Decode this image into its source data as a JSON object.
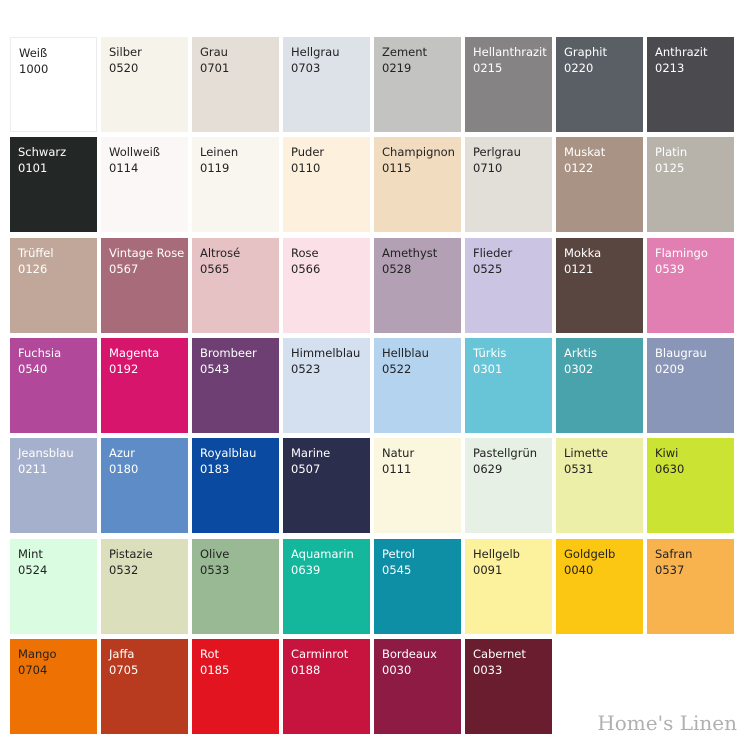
{
  "watermark": "Home's Linen",
  "swatches": [
    {
      "name": "Weiß",
      "code": "1000",
      "color": "#ffffff",
      "text_color": "#222222"
    },
    {
      "name": "Silber",
      "code": "0520",
      "color": "#f6f3ea",
      "text_color": "#222222"
    },
    {
      "name": "Grau",
      "code": "0701",
      "color": "#e5ded6",
      "text_color": "#222222"
    },
    {
      "name": "Hellgrau",
      "code": "0703",
      "color": "#dde2e8",
      "text_color": "#222222"
    },
    {
      "name": "Zement",
      "code": "0219",
      "color": "#c3c3c1",
      "text_color": "#222222"
    },
    {
      "name": "Hellanthrazit",
      "code": "0215",
      "color": "#858383",
      "text_color": "#ffffff"
    },
    {
      "name": "Graphit",
      "code": "0220",
      "color": "#5a5f66",
      "text_color": "#ffffff"
    },
    {
      "name": "Anthrazit",
      "code": "0213",
      "color": "#4a4a4f",
      "text_color": "#ffffff"
    },
    {
      "name": "Schwarz",
      "code": "0101",
      "color": "#232826",
      "text_color": "#ffffff"
    },
    {
      "name": "Wollweiß",
      "code": "0114",
      "color": "#faf7f6",
      "text_color": "#222222"
    },
    {
      "name": "Leinen",
      "code": "0119",
      "color": "#f8f6ee",
      "text_color": "#222222"
    },
    {
      "name": "Puder",
      "code": "0110",
      "color": "#fdf0dc",
      "text_color": "#222222"
    },
    {
      "name": "Champignon",
      "code": "0115",
      "color": "#f2dcc0",
      "text_color": "#222222"
    },
    {
      "name": "Perlgrau",
      "code": "0710",
      "color": "#e2dfd8",
      "text_color": "#222222"
    },
    {
      "name": "Muskat",
      "code": "0122",
      "color": "#a99384",
      "text_color": "#ffffff"
    },
    {
      "name": "Platin",
      "code": "0125",
      "color": "#b7b3ab",
      "text_color": "#ffffff"
    },
    {
      "name": "Trüffel",
      "code": "0126",
      "color": "#c1a79a",
      "text_color": "#ffffff"
    },
    {
      "name": "Vintage Rose",
      "code": "0567",
      "color": "#a86b79",
      "text_color": "#ffffff"
    },
    {
      "name": "Altrosé",
      "code": "0565",
      "color": "#e6c2c5",
      "text_color": "#222222"
    },
    {
      "name": "Rose",
      "code": "0566",
      "color": "#fbe0e8",
      "text_color": "#222222"
    },
    {
      "name": "Amethyst",
      "code": "0528",
      "color": "#b3a0b4",
      "text_color": "#222222"
    },
    {
      "name": "Flieder",
      "code": "0525",
      "color": "#cbc4e2",
      "text_color": "#222222"
    },
    {
      "name": "Mokka",
      "code": "0121",
      "color": "#5a4640",
      "text_color": "#ffffff"
    },
    {
      "name": "Flamingo",
      "code": "0539",
      "color": "#e27fb2",
      "text_color": "#ffffff"
    },
    {
      "name": "Fuchsia",
      "code": "0540",
      "color": "#b1489a",
      "text_color": "#ffffff"
    },
    {
      "name": "Magenta",
      "code": "0192",
      "color": "#d7156c",
      "text_color": "#ffffff"
    },
    {
      "name": "Brombeer",
      "code": "0543",
      "color": "#6d3f72",
      "text_color": "#ffffff"
    },
    {
      "name": "Himmelblau",
      "code": "0523",
      "color": "#d4dfef",
      "text_color": "#222222"
    },
    {
      "name": "Hellblau",
      "code": "0522",
      "color": "#b4d3ef",
      "text_color": "#222222"
    },
    {
      "name": "Türkis",
      "code": "0301",
      "color": "#68c5d8",
      "text_color": "#ffffff"
    },
    {
      "name": "Arktis",
      "code": "0302",
      "color": "#48a3ac",
      "text_color": "#ffffff"
    },
    {
      "name": "Blaugrau",
      "code": "0209",
      "color": "#8a96b7",
      "text_color": "#ffffff"
    },
    {
      "name": "Jeansblau",
      "code": "0211",
      "color": "#a5b0cd",
      "text_color": "#ffffff"
    },
    {
      "name": "Azur",
      "code": "0180",
      "color": "#5d8cc7",
      "text_color": "#ffffff"
    },
    {
      "name": "Royalblau",
      "code": "0183",
      "color": "#0a4aa0",
      "text_color": "#ffffff"
    },
    {
      "name": "Marine",
      "code": "0507",
      "color": "#2c2e4e",
      "text_color": "#ffffff"
    },
    {
      "name": "Natur",
      "code": "0111",
      "color": "#fbf7df",
      "text_color": "#222222"
    },
    {
      "name": "Pastellgrün",
      "code": "0629",
      "color": "#e6f0e4",
      "text_color": "#222222"
    },
    {
      "name": "Limette",
      "code": "0531",
      "color": "#ecefa8",
      "text_color": "#222222"
    },
    {
      "name": "Kiwi",
      "code": "0630",
      "color": "#cbe333",
      "text_color": "#222222"
    },
    {
      "name": "Mint",
      "code": "0524",
      "color": "#dafce0",
      "text_color": "#222222"
    },
    {
      "name": "Pistazie",
      "code": "0532",
      "color": "#dbdfbc",
      "text_color": "#222222"
    },
    {
      "name": "Olive",
      "code": "0533",
      "color": "#99b894",
      "text_color": "#222222"
    },
    {
      "name": "Aquamarin",
      "code": "0639",
      "color": "#14b79c",
      "text_color": "#ffffff"
    },
    {
      "name": "Petrol",
      "code": "0545",
      "color": "#0e8fa5",
      "text_color": "#ffffff"
    },
    {
      "name": "Hellgelb",
      "code": "0091",
      "color": "#fcf19c",
      "text_color": "#222222"
    },
    {
      "name": "Goldgelb",
      "code": "0040",
      "color": "#fbc713",
      "text_color": "#222222"
    },
    {
      "name": "Safran",
      "code": "0537",
      "color": "#f8b24e",
      "text_color": "#222222"
    },
    {
      "name": "Mango",
      "code": "0704",
      "color": "#ee7203",
      "text_color": "#222222"
    },
    {
      "name": "Jaffa",
      "code": "0705",
      "color": "#b93b1f",
      "text_color": "#ffffff"
    },
    {
      "name": "Rot",
      "code": "0185",
      "color": "#e2141f",
      "text_color": "#ffffff"
    },
    {
      "name": "Carminrot",
      "code": "0188",
      "color": "#c6143e",
      "text_color": "#ffffff"
    },
    {
      "name": "Bordeaux",
      "code": "0030",
      "color": "#8e1b44",
      "text_color": "#ffffff"
    },
    {
      "name": "Cabernet",
      "code": "0033",
      "color": "#6a1d2f",
      "text_color": "#ffffff"
    }
  ]
}
